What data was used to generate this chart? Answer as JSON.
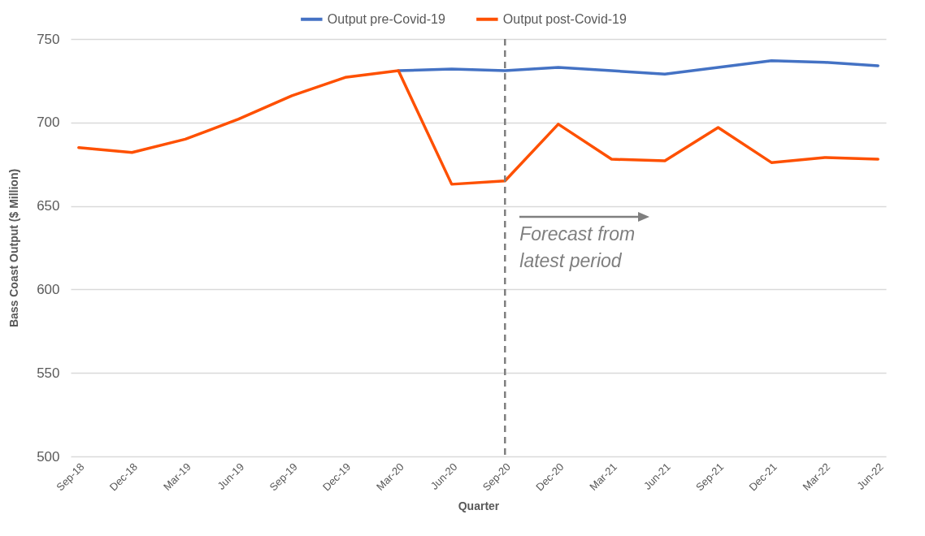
{
  "chart_data": {
    "type": "line",
    "xlabel": "Quarter",
    "ylabel": "Bass Coast Output ($ Million)",
    "categories": [
      "Sep-18",
      "Dec-18",
      "Mar-19",
      "Jun-19",
      "Sep-19",
      "Dec-19",
      "Mar-20",
      "Jun-20",
      "Sep-20",
      "Dec-20",
      "Mar-21",
      "Jun-21",
      "Sep-21",
      "Dec-21",
      "Mar-22",
      "Jun-22"
    ],
    "series": [
      {
        "name": "Output pre-Covid-19",
        "color": "#4472c4",
        "values": [
          null,
          null,
          null,
          null,
          null,
          null,
          731,
          732,
          731,
          733,
          731,
          729,
          733,
          737,
          736,
          734
        ]
      },
      {
        "name": "Output post-Covid-19",
        "color": "#fe5000",
        "values": [
          685,
          682,
          690,
          702,
          716,
          727,
          731,
          663,
          665,
          699,
          678,
          677,
          697,
          676,
          679,
          678
        ]
      }
    ],
    "ylim": [
      500,
      750
    ],
    "yticks": [
      500,
      550,
      600,
      650,
      700,
      750
    ],
    "grid": "y",
    "legend": "top",
    "ref_lines": [
      {
        "axis": "x",
        "value": "Sep-20",
        "color": "#7f7f7f",
        "line_style": "dashed"
      }
    ],
    "annotations": [
      "Forecast from latest period"
    ]
  }
}
